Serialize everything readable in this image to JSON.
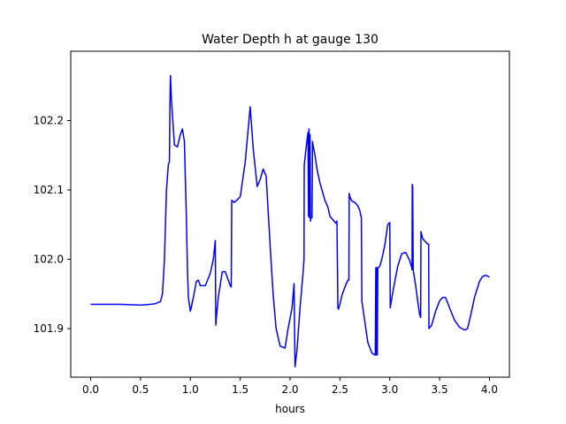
{
  "chart_data": {
    "type": "line",
    "title": "Water Depth h at gauge 130",
    "xlabel": "hours",
    "ylabel": "",
    "xlim": [
      -0.2,
      4.2
    ],
    "ylim": [
      101.83,
      102.3
    ],
    "xticks": [
      0.0,
      0.5,
      1.0,
      1.5,
      2.0,
      2.5,
      3.0,
      3.5,
      4.0
    ],
    "xtick_labels": [
      "0.0",
      "0.5",
      "1.0",
      "1.5",
      "2.0",
      "2.5",
      "3.0",
      "3.5",
      "4.0"
    ],
    "yticks": [
      101.9,
      102.0,
      102.1,
      102.2
    ],
    "ytick_labels": [
      "101.9",
      "102.0",
      "102.1",
      "102.2"
    ],
    "grid": false,
    "series": [
      {
        "color": "#0000ff",
        "x": [
          0.0,
          0.3,
          0.5,
          0.6,
          0.65,
          0.68,
          0.7,
          0.72,
          0.74,
          0.76,
          0.78,
          0.79,
          0.795,
          0.8,
          0.81,
          0.84,
          0.87,
          0.9,
          0.92,
          0.94,
          0.96,
          0.97,
          0.98,
          1.0,
          1.03,
          1.06,
          1.08,
          1.1,
          1.15,
          1.2,
          1.23,
          1.25,
          1.255,
          1.26,
          1.28,
          1.32,
          1.35,
          1.38,
          1.4,
          1.41,
          1.415,
          1.44,
          1.5,
          1.55,
          1.6,
          1.63,
          1.67,
          1.7,
          1.73,
          1.76,
          1.8,
          1.83,
          1.86,
          1.9,
          1.95,
          1.98,
          2.02,
          2.04,
          2.045,
          2.05,
          2.07,
          2.1,
          2.13,
          2.14,
          2.142,
          2.16,
          2.18,
          2.185,
          2.19,
          2.195,
          2.2,
          2.205,
          2.21,
          2.22,
          2.225,
          2.23,
          2.25,
          2.27,
          2.3,
          2.32,
          2.35,
          2.38,
          2.4,
          2.46,
          2.47,
          2.48,
          2.485,
          2.5,
          2.52,
          2.55,
          2.58,
          2.59,
          2.593,
          2.6,
          2.62,
          2.65,
          2.68,
          2.7,
          2.715,
          2.72,
          2.73,
          2.75,
          2.78,
          2.82,
          2.84,
          2.85,
          2.855,
          2.86,
          2.865,
          2.87,
          2.875,
          2.88,
          2.885,
          2.9,
          2.92,
          2.95,
          2.98,
          3.0,
          3.005,
          3.01,
          3.04,
          3.08,
          3.12,
          3.16,
          3.2,
          3.22,
          3.223,
          3.226,
          3.23,
          3.235,
          3.24,
          3.26,
          3.28,
          3.3,
          3.31,
          3.313,
          3.33,
          3.36,
          3.38,
          3.39,
          3.393,
          3.42,
          3.46,
          3.5,
          3.53,
          3.56,
          3.6,
          3.65,
          3.7,
          3.75,
          3.78,
          3.81,
          3.85,
          3.9,
          3.93,
          3.96,
          3.98,
          4.0
        ],
        "y": [
          101.935,
          101.935,
          101.934,
          101.935,
          101.936,
          101.938,
          101.939,
          101.95,
          102.0,
          102.1,
          102.138,
          102.14,
          102.22,
          102.265,
          102.23,
          102.165,
          102.162,
          102.18,
          102.188,
          102.17,
          102.06,
          101.99,
          101.945,
          101.925,
          101.945,
          101.968,
          101.97,
          101.962,
          101.962,
          101.98,
          102.0,
          102.027,
          101.905,
          101.915,
          101.945,
          101.982,
          101.982,
          101.97,
          101.962,
          101.96,
          102.085,
          102.082,
          102.09,
          102.14,
          102.22,
          102.16,
          102.105,
          102.115,
          102.13,
          102.12,
          102.02,
          101.95,
          101.9,
          101.875,
          101.872,
          101.9,
          101.93,
          101.965,
          101.9,
          101.845,
          101.87,
          101.93,
          101.98,
          102.0,
          102.135,
          102.16,
          102.183,
          102.062,
          102.188,
          102.06,
          102.18,
          102.055,
          102.06,
          102.06,
          102.17,
          102.165,
          102.15,
          102.13,
          102.11,
          102.1,
          102.085,
          102.075,
          102.062,
          102.052,
          102.055,
          101.93,
          101.928,
          101.935,
          101.948,
          101.96,
          101.97,
          101.97,
          102.095,
          102.09,
          102.084,
          102.082,
          102.077,
          102.07,
          102.06,
          101.94,
          101.93,
          101.91,
          101.88,
          101.865,
          101.863,
          101.862,
          101.862,
          101.988,
          101.862,
          101.988,
          101.862,
          101.988,
          101.988,
          101.99,
          102.0,
          102.02,
          102.05,
          102.053,
          101.93,
          101.935,
          101.96,
          101.99,
          102.008,
          102.01,
          101.998,
          101.988,
          101.985,
          102.108,
          102.105,
          101.985,
          101.98,
          101.962,
          101.94,
          101.92,
          101.916,
          102.04,
          102.03,
          102.025,
          102.022,
          102.022,
          101.9,
          101.905,
          101.925,
          101.94,
          101.945,
          101.945,
          101.93,
          101.912,
          101.902,
          101.898,
          101.9,
          101.918,
          101.945,
          101.968,
          101.975,
          101.977,
          101.976,
          101.974
        ]
      }
    ]
  }
}
